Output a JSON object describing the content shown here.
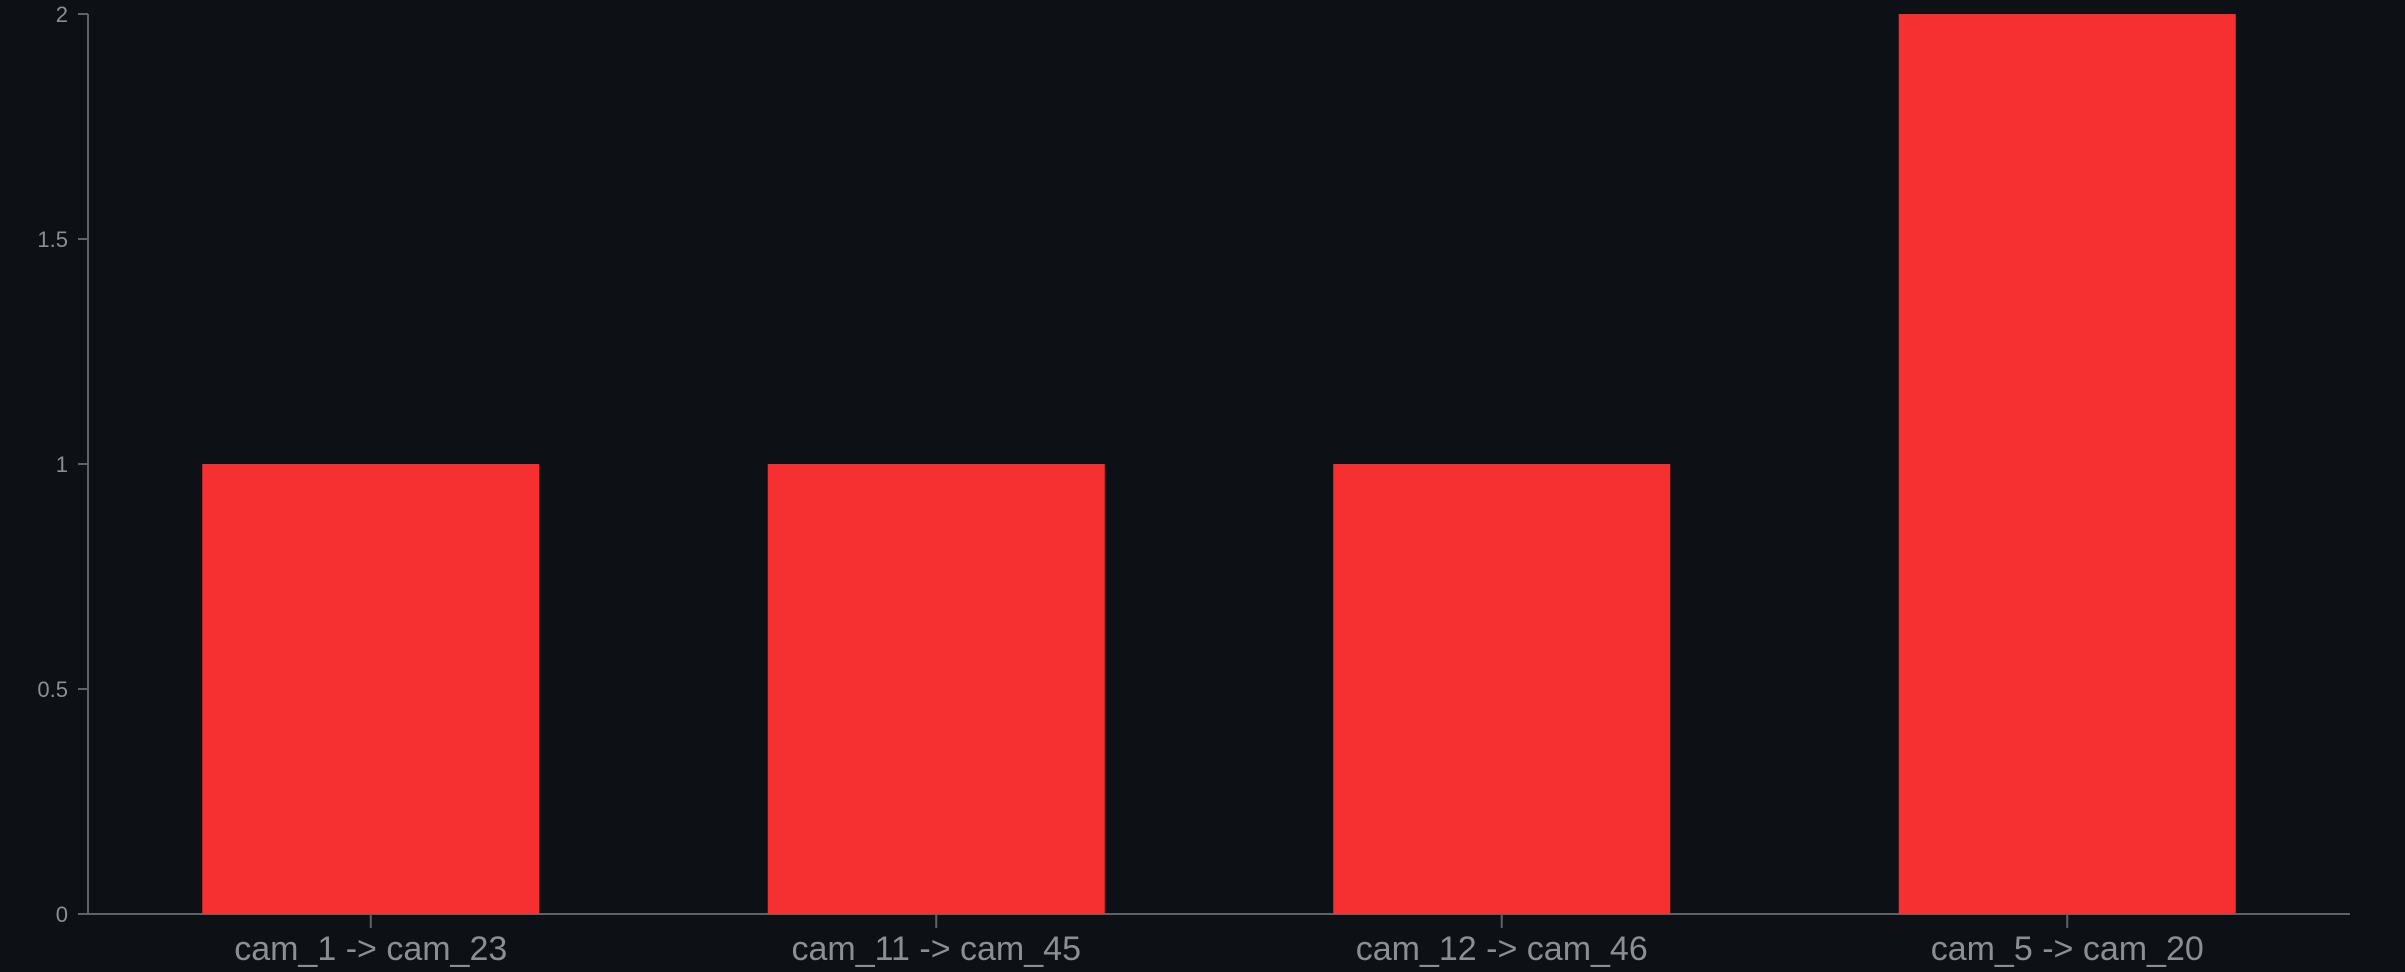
{
  "chart_data": {
    "type": "bar",
    "categories": [
      "cam_1 -> cam_23",
      "cam_11 -> cam_45",
      "cam_12 -> cam_46",
      "cam_5 -> cam_20"
    ],
    "values": [
      1,
      1,
      1,
      2
    ],
    "ylim": [
      0,
      2
    ],
    "yticks": [
      "0",
      "0.5",
      "1",
      "1.5",
      "2"
    ],
    "grid": false,
    "colors": {
      "bar": "#f62f30",
      "background": "#0d1014",
      "axis": "#5f6368",
      "tick_label": "#8b8f94"
    }
  }
}
